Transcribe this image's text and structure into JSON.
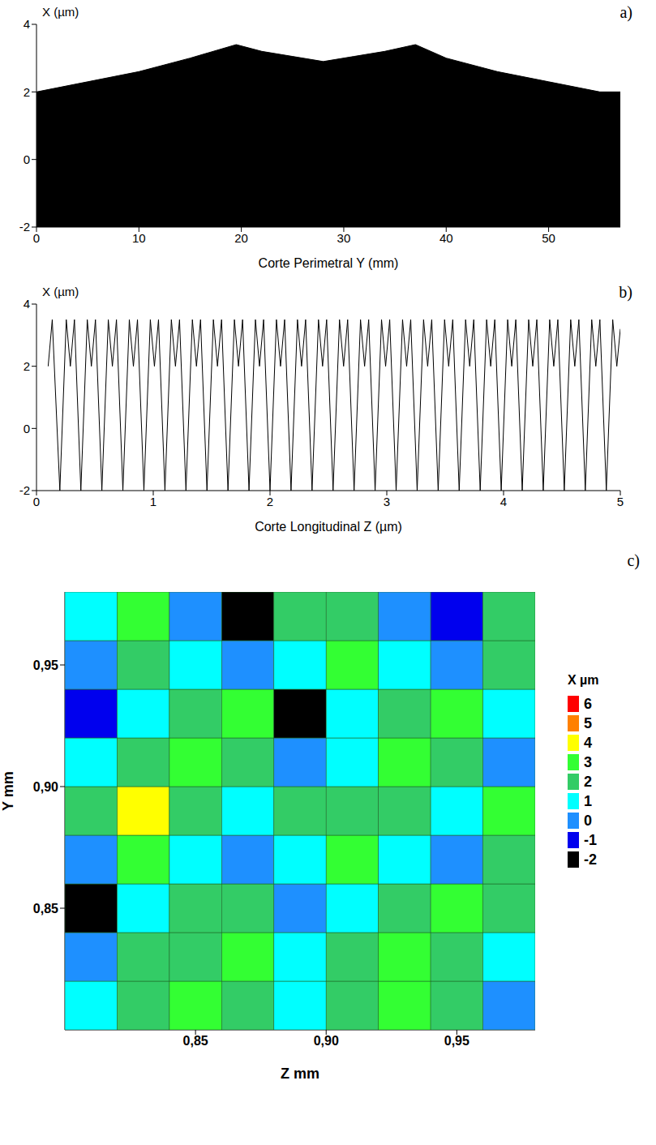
{
  "chart_data": [
    {
      "type": "area",
      "panel": "a)",
      "xlabel": "Corte Perimetral Y (mm)",
      "ylabel": "X (µm)",
      "color": "#000000",
      "x": [
        0,
        5,
        10,
        15,
        19.5,
        22,
        25,
        28,
        31,
        34,
        37,
        40,
        45,
        50,
        55,
        57
      ],
      "lower": [
        -2,
        -2,
        -2,
        -2,
        -2,
        -2,
        -2,
        -2,
        -2,
        -2,
        -2,
        -2,
        -2,
        -2,
        -2,
        -2
      ],
      "upper": [
        2,
        2.3,
        2.6,
        3.0,
        3.4,
        3.2,
        3.05,
        2.9,
        3.05,
        3.2,
        3.4,
        3.0,
        2.6,
        2.3,
        2.0,
        2.0
      ],
      "xlim": [
        0,
        57
      ],
      "xticks": [
        0,
        10,
        20,
        30,
        40,
        50
      ],
      "ylim": [
        -2,
        4
      ],
      "yticks": [
        -2,
        0,
        2,
        4
      ]
    },
    {
      "type": "line",
      "panel": "b)",
      "xlabel": "Corte Longitudinal Z (µm)",
      "ylabel": "X (µm)",
      "color": "#000000",
      "x": [
        0.1,
        0.135,
        0.2,
        0.255,
        0.29,
        0.325,
        0.38,
        0.435,
        0.47,
        0.505,
        0.56,
        0.615,
        0.65,
        0.685,
        0.74,
        0.795,
        0.83,
        0.865,
        0.92,
        0.975,
        1.01,
        1.045,
        1.1,
        1.155,
        1.19,
        1.225,
        1.28,
        1.335,
        1.37,
        1.405,
        1.46,
        1.515,
        1.55,
        1.585,
        1.64,
        1.695,
        1.73,
        1.765,
        1.82,
        1.875,
        1.91,
        1.945,
        2.0,
        2.055,
        2.09,
        2.125,
        2.18,
        2.235,
        2.27,
        2.305,
        2.36,
        2.415,
        2.45,
        2.485,
        2.54,
        2.595,
        2.63,
        2.665,
        2.72,
        2.775,
        2.81,
        2.845,
        2.9,
        2.955,
        2.99,
        3.025,
        3.08,
        3.135,
        3.17,
        3.205,
        3.26,
        3.315,
        3.35,
        3.385,
        3.44,
        3.495,
        3.53,
        3.565,
        3.62,
        3.675,
        3.71,
        3.745,
        3.8,
        3.855,
        3.89,
        3.925,
        3.98,
        4.035,
        4.07,
        4.105,
        4.16,
        4.215,
        4.25,
        4.285,
        4.34,
        4.395,
        4.43,
        4.465,
        4.52,
        4.575,
        4.61,
        4.645,
        4.7,
        4.755,
        4.79,
        4.825,
        4.88,
        4.935,
        4.97,
        5.0
      ],
      "values": [
        2,
        3.5,
        -2,
        3.5,
        2,
        3.5,
        -2,
        3.5,
        2,
        3.5,
        -2,
        3.5,
        2,
        3.5,
        -2,
        3.5,
        2,
        3.5,
        -2,
        3.5,
        2,
        3.5,
        -2,
        3.5,
        2,
        3.5,
        -2,
        3.5,
        2,
        3.5,
        -2,
        3.5,
        2,
        3.5,
        -2,
        3.5,
        2,
        3.5,
        -2,
        3.5,
        2,
        3.5,
        -2,
        3.5,
        2,
        3.5,
        -2,
        3.5,
        2,
        3.5,
        -2,
        3.5,
        2,
        3.5,
        -2,
        3.5,
        2,
        3.5,
        -2,
        3.5,
        2,
        3.5,
        -2,
        3.5,
        2,
        3.5,
        -2,
        3.5,
        2,
        3.5,
        -2,
        3.5,
        2,
        3.5,
        -2,
        3.5,
        2,
        3.5,
        -2,
        3.5,
        2,
        3.5,
        -2,
        3.5,
        2,
        3.5,
        -2,
        3.5,
        2,
        3.5,
        -2,
        3.5,
        2,
        3.5,
        -2,
        3.5,
        2,
        3.5,
        -2,
        3.5,
        2,
        3.5,
        -2,
        3.5,
        2,
        3.5,
        -2,
        3.5,
        2,
        3.2
      ],
      "xlim": [
        0,
        5
      ],
      "xticks": [
        0,
        1,
        2,
        3,
        4,
        5
      ],
      "ylim": [
        -2,
        4
      ],
      "yticks": [
        -2,
        0,
        2,
        4
      ]
    },
    {
      "type": "heatmap",
      "panel": "c)",
      "xlabel": "Z mm",
      "ylabel": "Y mm",
      "x": [
        0.81,
        0.83,
        0.85,
        0.87,
        0.89,
        0.91,
        0.93,
        0.95,
        0.97
      ],
      "y": [
        0.81,
        0.83,
        0.85,
        0.87,
        0.89,
        0.91,
        0.93,
        0.95,
        0.97
      ],
      "cells": [
        [
          1.5,
          2.5,
          3.2,
          2.4,
          1.0,
          2.2,
          3.0,
          2.0,
          0.5
        ],
        [
          0.5,
          2.0,
          2.6,
          3.4,
          1.5,
          2.6,
          3.3,
          2.2,
          1.2
        ],
        [
          -1.5,
          1.0,
          2.2,
          2.8,
          0.2,
          1.8,
          2.6,
          3.1,
          2.0
        ],
        [
          0.8,
          3.0,
          1.5,
          0.5,
          1.6,
          3.2,
          1.2,
          0.4,
          2.4
        ],
        [
          2.2,
          4.6,
          2.4,
          1.0,
          2.5,
          2.8,
          2.0,
          1.0,
          3.0
        ],
        [
          1.0,
          2.6,
          3.3,
          2.2,
          0.0,
          1.6,
          3.2,
          2.4,
          0.6
        ],
        [
          -0.5,
          1.2,
          2.5,
          3.1,
          -1.2,
          1.0,
          2.6,
          3.0,
          1.4
        ],
        [
          0.6,
          2.4,
          1.6,
          0.8,
          1.8,
          3.3,
          1.4,
          0.2,
          2.2
        ],
        [
          1.8,
          3.0,
          0.4,
          -1.8,
          2.4,
          2.6,
          0.0,
          -1.0,
          2.6
        ]
      ],
      "xlim": [
        0.8,
        0.98
      ],
      "xticks": [
        {
          "value": 0.85,
          "label": "0,85"
        },
        {
          "value": 0.9,
          "label": "0,90"
        },
        {
          "value": 0.95,
          "label": "0,95"
        }
      ],
      "ylim": [
        0.8,
        0.98
      ],
      "yticks": [
        {
          "value": 0.85,
          "label": "0,85"
        },
        {
          "value": 0.9,
          "label": "0,90"
        },
        {
          "value": 0.95,
          "label": "0,95"
        }
      ],
      "colorbar": {
        "label": "X µm",
        "range": [
          -2,
          6
        ],
        "ticks": [
          -2,
          -1,
          0,
          1,
          2,
          3,
          4,
          5,
          6
        ],
        "colors": [
          "#000000",
          "#0000ee",
          "#1e90ff",
          "#00ffff",
          "#33cc66",
          "#33ff33",
          "#ffff00",
          "#ff8000",
          "#ff0000"
        ]
      }
    }
  ]
}
